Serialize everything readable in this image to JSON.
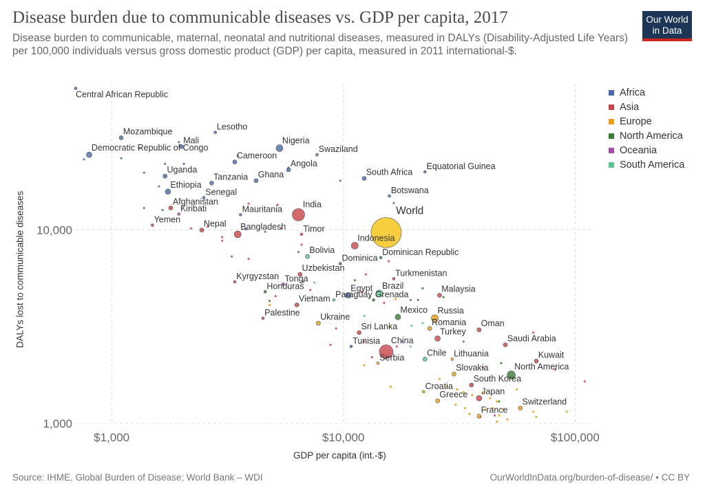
{
  "header": {
    "title": "Disease burden due to communicable diseases vs. GDP per capita, 2017",
    "subtitle": "Disease burden to communicable, maternal, neonatal and nutritional diseases, measured in DALYs (Disability-Adjusted Life Years) per 100,000 individuals versus gross domestic product (GDP) per capita, measured in 2011 international-$.",
    "logo_line1": "Our World",
    "logo_line2": "in Data"
  },
  "footer": {
    "source": "Source: IHME, Global Burden of Disease; World Bank – WDI",
    "url": "OurWorldInData.org/burden-of-disease/ • CC BY"
  },
  "chart_data": {
    "type": "scatter",
    "xlabel": "GDP per capita (int.-$)",
    "ylabel": "DALYs lost to communicable diseases",
    "xscale": "log",
    "yscale": "log",
    "xlim": [
      700,
      120000
    ],
    "ylim": [
      1000,
      57000
    ],
    "xticks": [
      {
        "value": 1000,
        "label": "$1,000"
      },
      {
        "value": 10000,
        "label": "$10,000"
      },
      {
        "value": 100000,
        "label": "$100,000"
      }
    ],
    "yticks": [
      {
        "value": 1000,
        "label": "1,000"
      },
      {
        "value": 10000,
        "label": "10,000"
      }
    ],
    "grid": true,
    "legend_position": "top-right",
    "regions": [
      {
        "name": "Africa",
        "color": "#4c6ba8"
      },
      {
        "name": "Asia",
        "color": "#c8454a"
      },
      {
        "name": "Europe",
        "color": "#e79d15"
      },
      {
        "name": "North America",
        "color": "#3c7a3a"
      },
      {
        "name": "Oceania",
        "color": "#a74aa6"
      },
      {
        "name": "South America",
        "color": "#5fc28e"
      }
    ],
    "world_color": "#f7c520",
    "labeled_points": [
      {
        "label": "Central African Republic",
        "x": 700,
        "y": 54000,
        "region": "Africa",
        "size": 2
      },
      {
        "label": "Mozambique",
        "x": 1100,
        "y": 30000,
        "region": "Africa",
        "size": 3
      },
      {
        "label": "Lesotho",
        "x": 2800,
        "y": 32000,
        "region": "Africa",
        "size": 2
      },
      {
        "label": "Mali",
        "x": 2000,
        "y": 27000,
        "region": "Africa",
        "size": 3
      },
      {
        "label": "Democratic Republic of Congo",
        "x": 800,
        "y": 24500,
        "region": "Africa",
        "size": 4
      },
      {
        "label": "Nigeria",
        "x": 5300,
        "y": 26500,
        "region": "Africa",
        "size": 5
      },
      {
        "label": "Swaziland",
        "x": 7700,
        "y": 24500,
        "region": "Africa",
        "size": 2
      },
      {
        "label": "Cameroon",
        "x": 3400,
        "y": 22500,
        "region": "Africa",
        "size": 3
      },
      {
        "label": "Angola",
        "x": 5800,
        "y": 20500,
        "region": "Africa",
        "size": 3
      },
      {
        "label": "Uganda",
        "x": 1700,
        "y": 19000,
        "region": "Africa",
        "size": 3
      },
      {
        "label": "Tanzania",
        "x": 2700,
        "y": 17500,
        "region": "Africa",
        "size": 3
      },
      {
        "label": "Ghana",
        "x": 4200,
        "y": 18000,
        "region": "Africa",
        "size": 3
      },
      {
        "label": "South Africa",
        "x": 12300,
        "y": 18500,
        "region": "Africa",
        "size": 3
      },
      {
        "label": "Equatorial Guinea",
        "x": 22500,
        "y": 20000,
        "region": "Africa",
        "size": 2
      },
      {
        "label": "Ethiopia",
        "x": 1750,
        "y": 15800,
        "region": "Africa",
        "size": 4
      },
      {
        "label": "Senegal",
        "x": 2500,
        "y": 14700,
        "region": "Africa",
        "size": 2
      },
      {
        "label": "Botswana",
        "x": 15800,
        "y": 15000,
        "region": "Africa",
        "size": 2
      },
      {
        "label": "Afghanistan",
        "x": 1800,
        "y": 13000,
        "region": "Asia",
        "size": 3
      },
      {
        "label": "Kiribati",
        "x": 1950,
        "y": 12100,
        "region": "Oceania",
        "size": 2
      },
      {
        "label": "Mauritania",
        "x": 3600,
        "y": 12000,
        "region": "Africa",
        "size": 2
      },
      {
        "label": "India",
        "x": 6400,
        "y": 12000,
        "region": "Asia",
        "size": 9
      },
      {
        "label": "Yemen",
        "x": 1500,
        "y": 10600,
        "region": "Asia",
        "size": 2
      },
      {
        "label": "Nepal",
        "x": 2450,
        "y": 10000,
        "region": "Asia",
        "size": 3
      },
      {
        "label": "Bangladesh",
        "x": 3500,
        "y": 9500,
        "region": "Asia",
        "size": 5
      },
      {
        "label": "Timor",
        "x": 6600,
        "y": 9500,
        "region": "Asia",
        "size": 2
      },
      {
        "label": "World",
        "x": 15300,
        "y": 9700,
        "region": "World",
        "size": 22
      },
      {
        "label": "Indonesia",
        "x": 11200,
        "y": 8300,
        "region": "Asia",
        "size": 5
      },
      {
        "label": "Bolivia",
        "x": 7000,
        "y": 7300,
        "region": "South America",
        "size": 3
      },
      {
        "label": "Dominican Republic",
        "x": 14500,
        "y": 7200,
        "region": "North America",
        "size": 2
      },
      {
        "label": "Dominica",
        "x": 9700,
        "y": 6700,
        "region": "North America",
        "size": 2
      },
      {
        "label": "Uzbekistan",
        "x": 6500,
        "y": 5900,
        "region": "Asia",
        "size": 3
      },
      {
        "label": "Turkmenistan",
        "x": 16500,
        "y": 5600,
        "region": "Asia",
        "size": 2
      },
      {
        "label": "Kyrgyzstan",
        "x": 3400,
        "y": 5400,
        "region": "Asia",
        "size": 2
      },
      {
        "label": "Tonga",
        "x": 5500,
        "y": 5250,
        "region": "Oceania",
        "size": 2
      },
      {
        "label": "Honduras",
        "x": 4600,
        "y": 4800,
        "region": "North America",
        "size": 2
      },
      {
        "label": "Egypt",
        "x": 10500,
        "y": 4600,
        "region": "Africa",
        "size": 4
      },
      {
        "label": "Brazil",
        "x": 14300,
        "y": 4700,
        "region": "South America",
        "size": 5
      },
      {
        "label": "Malaysia",
        "x": 26000,
        "y": 4600,
        "region": "Asia",
        "size": 3
      },
      {
        "label": "Vietnam",
        "x": 6300,
        "y": 4100,
        "region": "Asia",
        "size": 3
      },
      {
        "label": "Paraguay",
        "x": 9100,
        "y": 4350,
        "region": "South America",
        "size": 2
      },
      {
        "label": "Grenada",
        "x": 13500,
        "y": 4350,
        "region": "North America",
        "size": 2
      },
      {
        "label": "Palestine",
        "x": 4500,
        "y": 3500,
        "region": "Asia",
        "size": 2
      },
      {
        "label": "Mexico",
        "x": 17200,
        "y": 3550,
        "region": "North America",
        "size": 4
      },
      {
        "label": "Russia",
        "x": 24800,
        "y": 3500,
        "region": "Europe",
        "size": 5
      },
      {
        "label": "Ukraine",
        "x": 7800,
        "y": 3300,
        "region": "Europe",
        "size": 3
      },
      {
        "label": "Sri Lanka",
        "x": 11700,
        "y": 2950,
        "region": "Asia",
        "size": 3
      },
      {
        "label": "Romania",
        "x": 23600,
        "y": 3100,
        "region": "Europe",
        "size": 3
      },
      {
        "label": "Oman",
        "x": 38500,
        "y": 3050,
        "region": "Asia",
        "size": 3
      },
      {
        "label": "Turkey",
        "x": 25500,
        "y": 2750,
        "region": "Asia",
        "size": 4
      },
      {
        "label": "Saudi Arabia",
        "x": 50000,
        "y": 2550,
        "region": "Asia",
        "size": 3
      },
      {
        "label": "Tunisia",
        "x": 10800,
        "y": 2500,
        "region": "Africa",
        "size": 2
      },
      {
        "label": "China",
        "x": 15300,
        "y": 2350,
        "region": "Asia",
        "size": 10
      },
      {
        "label": "Serbia",
        "x": 14100,
        "y": 2050,
        "region": "Europe",
        "size": 2
      },
      {
        "label": "Chile",
        "x": 22500,
        "y": 2150,
        "region": "South America",
        "size": 3
      },
      {
        "label": "Lithuania",
        "x": 29500,
        "y": 2150,
        "region": "Europe",
        "size": 2
      },
      {
        "label": "Kuwait",
        "x": 68000,
        "y": 2100,
        "region": "Asia",
        "size": 3
      },
      {
        "label": "Slovakia",
        "x": 30000,
        "y": 1800,
        "region": "Europe",
        "size": 3
      },
      {
        "label": "North America",
        "x": 53000,
        "y": 1780,
        "region": "North America",
        "size": 6
      },
      {
        "label": "South Korea",
        "x": 35700,
        "y": 1580,
        "region": "Asia",
        "size": 3
      },
      {
        "label": "Croatia",
        "x": 22200,
        "y": 1460,
        "region": "Europe",
        "size": 2
      },
      {
        "label": "Japan",
        "x": 38500,
        "y": 1350,
        "region": "Asia",
        "size": 4
      },
      {
        "label": "Greece",
        "x": 25500,
        "y": 1310,
        "region": "Europe",
        "size": 3
      },
      {
        "label": "Switzerland",
        "x": 58000,
        "y": 1200,
        "region": "Europe",
        "size": 3
      },
      {
        "label": "France",
        "x": 38500,
        "y": 1090,
        "region": "Europe",
        "size": 3
      }
    ],
    "unlabeled_points": [
      {
        "x": 1100,
        "y": 23500,
        "region": "Africa"
      },
      {
        "x": 760,
        "y": 23200,
        "region": "Africa"
      },
      {
        "x": 1320,
        "y": 26500,
        "region": "Africa"
      },
      {
        "x": 1700,
        "y": 22000,
        "region": "Africa"
      },
      {
        "x": 1950,
        "y": 28500,
        "region": "Africa"
      },
      {
        "x": 2050,
        "y": 22000,
        "region": "Africa"
      },
      {
        "x": 1380,
        "y": 19800,
        "region": "Africa"
      },
      {
        "x": 3500,
        "y": 24200,
        "region": "Africa"
      },
      {
        "x": 5800,
        "y": 21000,
        "region": "Africa"
      },
      {
        "x": 9700,
        "y": 18000,
        "region": "Africa"
      },
      {
        "x": 1600,
        "y": 16800,
        "region": "Africa"
      },
      {
        "x": 1380,
        "y": 13000,
        "region": "Africa"
      },
      {
        "x": 16500,
        "y": 13800,
        "region": "Africa"
      },
      {
        "x": 1660,
        "y": 12700,
        "region": "North America"
      },
      {
        "x": 3900,
        "y": 13700,
        "region": "Asia"
      },
      {
        "x": 5200,
        "y": 13500,
        "region": "Asia"
      },
      {
        "x": 2200,
        "y": 10200,
        "region": "Oceania"
      },
      {
        "x": 2600,
        "y": 10400,
        "region": "Asia"
      },
      {
        "x": 3000,
        "y": 9200,
        "region": "Asia"
      },
      {
        "x": 3000,
        "y": 8800,
        "region": "Oceania"
      },
      {
        "x": 3800,
        "y": 10100,
        "region": "Africa"
      },
      {
        "x": 4600,
        "y": 9800,
        "region": "Africa"
      },
      {
        "x": 5400,
        "y": 10200,
        "region": "Asia"
      },
      {
        "x": 6600,
        "y": 8400,
        "region": "Asia"
      },
      {
        "x": 6400,
        "y": 7700,
        "region": "Africa"
      },
      {
        "x": 3300,
        "y": 7300,
        "region": "Oceania"
      },
      {
        "x": 3900,
        "y": 7100,
        "region": "Asia"
      },
      {
        "x": 15700,
        "y": 6900,
        "region": "Asia"
      },
      {
        "x": 6700,
        "y": 5400,
        "region": "Africa"
      },
      {
        "x": 7500,
        "y": 5350,
        "region": "South America"
      },
      {
        "x": 7200,
        "y": 4900,
        "region": "Asia"
      },
      {
        "x": 5100,
        "y": 4550,
        "region": "Asia"
      },
      {
        "x": 4800,
        "y": 4300,
        "region": "North America"
      },
      {
        "x": 4800,
        "y": 4100,
        "region": "Europe"
      },
      {
        "x": 12500,
        "y": 5900,
        "region": "Asia"
      },
      {
        "x": 11200,
        "y": 5500,
        "region": "North America"
      },
      {
        "x": 12000,
        "y": 4800,
        "region": "Asia"
      },
      {
        "x": 13000,
        "y": 4500,
        "region": "South America"
      },
      {
        "x": 15000,
        "y": 4200,
        "region": "Asia"
      },
      {
        "x": 19500,
        "y": 4350,
        "region": "Africa"
      },
      {
        "x": 21000,
        "y": 4350,
        "region": "Africa"
      },
      {
        "x": 16800,
        "y": 4400,
        "region": "Europe"
      },
      {
        "x": 22000,
        "y": 5000,
        "region": "North America"
      },
      {
        "x": 27000,
        "y": 4500,
        "region": "North America"
      },
      {
        "x": 12300,
        "y": 3600,
        "region": "South America"
      },
      {
        "x": 17200,
        "y": 3650,
        "region": "South America"
      },
      {
        "x": 19700,
        "y": 3200,
        "region": "South America"
      },
      {
        "x": 9300,
        "y": 3100,
        "region": "Asia"
      },
      {
        "x": 15800,
        "y": 3150,
        "region": "Europe"
      },
      {
        "x": 22000,
        "y": 3300,
        "region": "South America"
      },
      {
        "x": 8800,
        "y": 2550,
        "region": "Asia"
      },
      {
        "x": 12300,
        "y": 2650,
        "region": "Asia"
      },
      {
        "x": 13300,
        "y": 2200,
        "region": "Asia"
      },
      {
        "x": 17000,
        "y": 2500,
        "region": "Asia"
      },
      {
        "x": 18000,
        "y": 2650,
        "region": "Africa"
      },
      {
        "x": 19500,
        "y": 2500,
        "region": "South America"
      },
      {
        "x": 12300,
        "y": 2000,
        "region": "Europe"
      },
      {
        "x": 16000,
        "y": 1550,
        "region": "Europe"
      },
      {
        "x": 33000,
        "y": 2650,
        "region": "North America"
      },
      {
        "x": 66000,
        "y": 2950,
        "region": "Asia"
      },
      {
        "x": 48000,
        "y": 2050,
        "region": "North America"
      },
      {
        "x": 40000,
        "y": 1950,
        "region": "Oceania"
      },
      {
        "x": 110000,
        "y": 1650,
        "region": "Asia"
      },
      {
        "x": 82000,
        "y": 1900,
        "region": "Asia"
      },
      {
        "x": 26000,
        "y": 1700,
        "region": "Europe"
      },
      {
        "x": 28000,
        "y": 1550,
        "region": "Europe"
      },
      {
        "x": 31000,
        "y": 1500,
        "region": "Europe"
      },
      {
        "x": 33000,
        "y": 1450,
        "region": "Europe"
      },
      {
        "x": 36000,
        "y": 1400,
        "region": "Europe"
      },
      {
        "x": 40000,
        "y": 1450,
        "region": "Europe"
      },
      {
        "x": 43000,
        "y": 1350,
        "region": "Europe"
      },
      {
        "x": 46000,
        "y": 1300,
        "region": "Europe"
      },
      {
        "x": 30500,
        "y": 1250,
        "region": "Europe"
      },
      {
        "x": 33500,
        "y": 1200,
        "region": "Europe"
      },
      {
        "x": 35000,
        "y": 1120,
        "region": "Europe"
      },
      {
        "x": 41000,
        "y": 1180,
        "region": "Europe"
      },
      {
        "x": 44000,
        "y": 1200,
        "region": "Europe"
      },
      {
        "x": 47000,
        "y": 1100,
        "region": "Europe"
      },
      {
        "x": 49000,
        "y": 1180,
        "region": "Europe"
      },
      {
        "x": 51000,
        "y": 1050,
        "region": "Europe"
      },
      {
        "x": 46000,
        "y": 1020,
        "region": "Europe"
      },
      {
        "x": 66000,
        "y": 1150,
        "region": "Europe"
      },
      {
        "x": 68000,
        "y": 1080,
        "region": "Europe"
      },
      {
        "x": 92000,
        "y": 1150,
        "region": "Europe"
      },
      {
        "x": 39000,
        "y": 1080,
        "region": "Oceania"
      },
      {
        "x": 45000,
        "y": 1100,
        "region": "Oceania"
      },
      {
        "x": 47000,
        "y": 1300,
        "region": "North America"
      },
      {
        "x": 56000,
        "y": 1500,
        "region": "Europe"
      }
    ]
  }
}
